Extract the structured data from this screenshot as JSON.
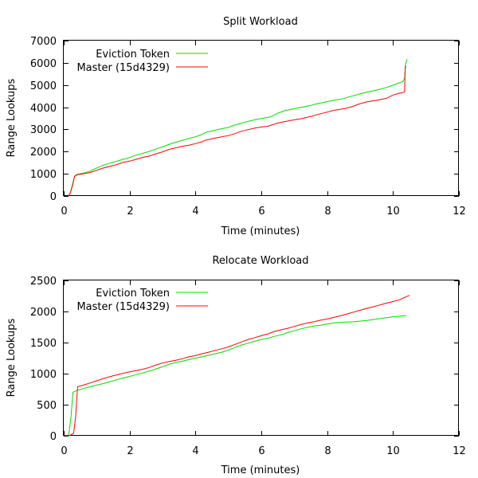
{
  "chart_data": [
    {
      "type": "line",
      "title": "Split Workload",
      "xlabel": "Time (minutes)",
      "ylabel": "Range Lookups",
      "xlim": [
        0,
        12
      ],
      "ylim": [
        0,
        7000
      ],
      "xticks": [
        "0",
        "2",
        "4",
        "6",
        "8",
        "10",
        "12"
      ],
      "yticks": [
        "0",
        "1000",
        "2000",
        "3000",
        "4000",
        "5000",
        "6000",
        "7000"
      ],
      "grid": false,
      "legend_position": "top-left",
      "series": [
        {
          "name": "Eviction Token",
          "color": "#00dd00",
          "points": [
            [
              0.14,
              0
            ],
            [
              0.2,
              150
            ],
            [
              0.28,
              600
            ],
            [
              0.33,
              900
            ],
            [
              0.4,
              970
            ],
            [
              0.6,
              1030
            ],
            [
              0.8,
              1120
            ],
            [
              1,
              1260
            ],
            [
              1.2,
              1390
            ],
            [
              1.4,
              1480
            ],
            [
              1.6,
              1560
            ],
            [
              1.8,
              1650
            ],
            [
              2,
              1730
            ],
            [
              2.2,
              1840
            ],
            [
              2.4,
              1920
            ],
            [
              2.6,
              2010
            ],
            [
              2.8,
              2110
            ],
            [
              3,
              2210
            ],
            [
              3.2,
              2330
            ],
            [
              3.4,
              2420
            ],
            [
              3.6,
              2510
            ],
            [
              3.8,
              2590
            ],
            [
              4,
              2670
            ],
            [
              4.2,
              2770
            ],
            [
              4.3,
              2860
            ],
            [
              4.5,
              2930
            ],
            [
              4.7,
              3000
            ],
            [
              5,
              3090
            ],
            [
              5.2,
              3200
            ],
            [
              5.4,
              3280
            ],
            [
              5.6,
              3360
            ],
            [
              5.8,
              3430
            ],
            [
              6,
              3490
            ],
            [
              6.2,
              3540
            ],
            [
              6.3,
              3580
            ],
            [
              6.5,
              3730
            ],
            [
              6.7,
              3840
            ],
            [
              7,
              3930
            ],
            [
              7.2,
              3990
            ],
            [
              7.5,
              4080
            ],
            [
              7.7,
              4160
            ],
            [
              8,
              4250
            ],
            [
              8.2,
              4310
            ],
            [
              8.5,
              4390
            ],
            [
              8.7,
              4480
            ],
            [
              9,
              4600
            ],
            [
              9.2,
              4680
            ],
            [
              9.5,
              4770
            ],
            [
              9.8,
              4890
            ],
            [
              10,
              4990
            ],
            [
              10.2,
              5100
            ],
            [
              10.3,
              5160
            ],
            [
              10.35,
              5300
            ],
            [
              10.38,
              5900
            ],
            [
              10.42,
              6150
            ]
          ]
        },
        {
          "name": "Master (15d4329)",
          "color": "#ff0000",
          "points": [
            [
              0.14,
              0
            ],
            [
              0.2,
              120
            ],
            [
              0.28,
              550
            ],
            [
              0.33,
              880
            ],
            [
              0.4,
              950
            ],
            [
              0.6,
              1000
            ],
            [
              0.8,
              1060
            ],
            [
              1,
              1160
            ],
            [
              1.2,
              1260
            ],
            [
              1.4,
              1330
            ],
            [
              1.6,
              1410
            ],
            [
              1.8,
              1510
            ],
            [
              2,
              1570
            ],
            [
              2.2,
              1650
            ],
            [
              2.4,
              1740
            ],
            [
              2.6,
              1800
            ],
            [
              2.8,
              1900
            ],
            [
              3,
              1990
            ],
            [
              3.2,
              2100
            ],
            [
              3.4,
              2170
            ],
            [
              3.6,
              2240
            ],
            [
              3.8,
              2290
            ],
            [
              4,
              2360
            ],
            [
              4.2,
              2440
            ],
            [
              4.3,
              2510
            ],
            [
              4.5,
              2580
            ],
            [
              4.7,
              2640
            ],
            [
              5,
              2720
            ],
            [
              5.2,
              2810
            ],
            [
              5.4,
              2920
            ],
            [
              5.6,
              2990
            ],
            [
              5.8,
              3060
            ],
            [
              6,
              3110
            ],
            [
              6.2,
              3140
            ],
            [
              6.3,
              3190
            ],
            [
              6.5,
              3290
            ],
            [
              6.7,
              3350
            ],
            [
              7,
              3430
            ],
            [
              7.2,
              3480
            ],
            [
              7.5,
              3580
            ],
            [
              7.7,
              3670
            ],
            [
              8,
              3780
            ],
            [
              8.2,
              3860
            ],
            [
              8.5,
              3930
            ],
            [
              8.7,
              4000
            ],
            [
              9,
              4160
            ],
            [
              9.2,
              4240
            ],
            [
              9.5,
              4310
            ],
            [
              9.8,
              4400
            ],
            [
              10,
              4550
            ],
            [
              10.2,
              4630
            ],
            [
              10.3,
              4660
            ],
            [
              10.35,
              4690
            ],
            [
              10.37,
              5800
            ],
            [
              10.4,
              5850
            ]
          ]
        }
      ]
    },
    {
      "type": "line",
      "title": "Relocate Workload",
      "xlabel": "Time (minutes)",
      "ylabel": "Range Lookups",
      "xlim": [
        0,
        12
      ],
      "ylim": [
        0,
        2500
      ],
      "xticks": [
        "0",
        "2",
        "4",
        "6",
        "8",
        "10",
        "12"
      ],
      "yticks": [
        "0",
        "500",
        "1000",
        "1500",
        "2000",
        "2500"
      ],
      "grid": false,
      "legend_position": "top-left",
      "series": [
        {
          "name": "Eviction Token",
          "color": "#00dd00",
          "points": [
            [
              0,
              0
            ],
            [
              0.15,
              5
            ],
            [
              0.22,
              300
            ],
            [
              0.28,
              700
            ],
            [
              0.4,
              730
            ],
            [
              0.6,
              760
            ],
            [
              0.8,
              790
            ],
            [
              1,
              815
            ],
            [
              1.2,
              840
            ],
            [
              1.4,
              870
            ],
            [
              1.6,
              900
            ],
            [
              1.8,
              930
            ],
            [
              2,
              955
            ],
            [
              2.2,
              985
            ],
            [
              2.4,
              1010
            ],
            [
              2.6,
              1040
            ],
            [
              2.8,
              1075
            ],
            [
              3,
              1110
            ],
            [
              3.2,
              1150
            ],
            [
              3.4,
              1180
            ],
            [
              3.6,
              1200
            ],
            [
              3.8,
              1225
            ],
            [
              4,
              1250
            ],
            [
              4.2,
              1270
            ],
            [
              4.4,
              1295
            ],
            [
              4.6,
              1320
            ],
            [
              4.8,
              1345
            ],
            [
              5,
              1380
            ],
            [
              5.2,
              1420
            ],
            [
              5.4,
              1460
            ],
            [
              5.6,
              1490
            ],
            [
              5.8,
              1520
            ],
            [
              6,
              1550
            ],
            [
              6.2,
              1570
            ],
            [
              6.4,
              1600
            ],
            [
              6.6,
              1625
            ],
            [
              6.8,
              1660
            ],
            [
              7,
              1690
            ],
            [
              7.2,
              1720
            ],
            [
              7.4,
              1745
            ],
            [
              7.6,
              1765
            ],
            [
              7.8,
              1780
            ],
            [
              8,
              1800
            ],
            [
              8.2,
              1815
            ],
            [
              8.4,
              1825
            ],
            [
              8.6,
              1830
            ],
            [
              8.8,
              1835
            ],
            [
              9,
              1845
            ],
            [
              9.2,
              1855
            ],
            [
              9.4,
              1870
            ],
            [
              9.6,
              1885
            ],
            [
              9.8,
              1900
            ],
            [
              10,
              1915
            ],
            [
              10.2,
              1925
            ],
            [
              10.4,
              1935
            ]
          ]
        },
        {
          "name": "Master (15d4329)",
          "color": "#ff0000",
          "points": [
            [
              0,
              0
            ],
            [
              0.2,
              10
            ],
            [
              0.3,
              40
            ],
            [
              0.36,
              300
            ],
            [
              0.42,
              790
            ],
            [
              0.6,
              815
            ],
            [
              0.8,
              850
            ],
            [
              1,
              885
            ],
            [
              1.2,
              920
            ],
            [
              1.4,
              950
            ],
            [
              1.6,
              980
            ],
            [
              1.8,
              1005
            ],
            [
              2,
              1030
            ],
            [
              2.2,
              1050
            ],
            [
              2.4,
              1070
            ],
            [
              2.6,
              1100
            ],
            [
              2.8,
              1140
            ],
            [
              3,
              1170
            ],
            [
              3.2,
              1195
            ],
            [
              3.4,
              1215
            ],
            [
              3.6,
              1240
            ],
            [
              3.8,
              1270
            ],
            [
              4,
              1290
            ],
            [
              4.2,
              1320
            ],
            [
              4.4,
              1345
            ],
            [
              4.6,
              1375
            ],
            [
              4.8,
              1400
            ],
            [
              5,
              1430
            ],
            [
              5.2,
              1470
            ],
            [
              5.4,
              1510
            ],
            [
              5.6,
              1550
            ],
            [
              5.8,
              1580
            ],
            [
              6,
              1610
            ],
            [
              6.2,
              1640
            ],
            [
              6.4,
              1680
            ],
            [
              6.6,
              1705
            ],
            [
              6.8,
              1730
            ],
            [
              7,
              1760
            ],
            [
              7.2,
              1790
            ],
            [
              7.4,
              1815
            ],
            [
              7.6,
              1835
            ],
            [
              7.8,
              1860
            ],
            [
              8,
              1880
            ],
            [
              8.2,
              1905
            ],
            [
              8.4,
              1930
            ],
            [
              8.6,
              1960
            ],
            [
              8.8,
              1990
            ],
            [
              9,
              2020
            ],
            [
              9.2,
              2050
            ],
            [
              9.4,
              2075
            ],
            [
              9.6,
              2105
            ],
            [
              9.8,
              2135
            ],
            [
              10,
              2160
            ],
            [
              10.2,
              2190
            ],
            [
              10.5,
              2260
            ]
          ]
        }
      ]
    }
  ]
}
